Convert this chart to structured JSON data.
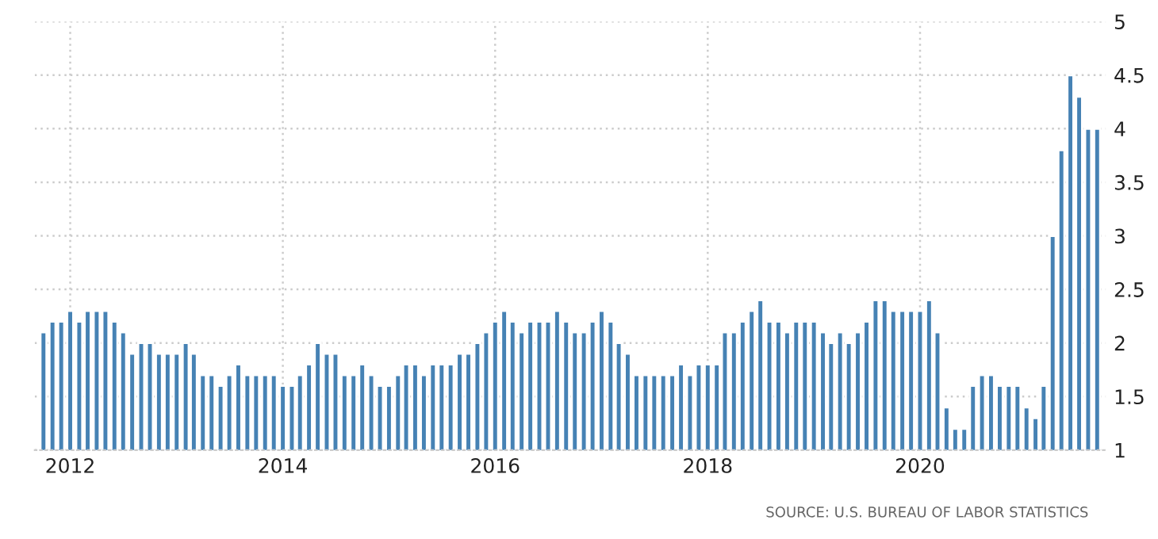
{
  "chart_data": {
    "type": "bar",
    "x": [
      "2011-10",
      "2011-11",
      "2011-12",
      "2012-01",
      "2012-02",
      "2012-03",
      "2012-04",
      "2012-05",
      "2012-06",
      "2012-07",
      "2012-08",
      "2012-09",
      "2012-10",
      "2012-11",
      "2012-12",
      "2013-01",
      "2013-02",
      "2013-03",
      "2013-04",
      "2013-05",
      "2013-06",
      "2013-07",
      "2013-08",
      "2013-09",
      "2013-10",
      "2013-11",
      "2013-12",
      "2014-01",
      "2014-02",
      "2014-03",
      "2014-04",
      "2014-05",
      "2014-06",
      "2014-07",
      "2014-08",
      "2014-09",
      "2014-10",
      "2014-11",
      "2014-12",
      "2015-01",
      "2015-02",
      "2015-03",
      "2015-04",
      "2015-05",
      "2015-06",
      "2015-07",
      "2015-08",
      "2015-09",
      "2015-10",
      "2015-11",
      "2015-12",
      "2016-01",
      "2016-02",
      "2016-03",
      "2016-04",
      "2016-05",
      "2016-06",
      "2016-07",
      "2016-08",
      "2016-09",
      "2016-10",
      "2016-11",
      "2016-12",
      "2017-01",
      "2017-02",
      "2017-03",
      "2017-04",
      "2017-05",
      "2017-06",
      "2017-07",
      "2017-08",
      "2017-09",
      "2017-10",
      "2017-11",
      "2017-12",
      "2018-01",
      "2018-02",
      "2018-03",
      "2018-04",
      "2018-05",
      "2018-06",
      "2018-07",
      "2018-08",
      "2018-09",
      "2018-10",
      "2018-11",
      "2018-12",
      "2019-01",
      "2019-02",
      "2019-03",
      "2019-04",
      "2019-05",
      "2019-06",
      "2019-07",
      "2019-08",
      "2019-09",
      "2019-10",
      "2019-11",
      "2019-12",
      "2020-01",
      "2020-02",
      "2020-03",
      "2020-04",
      "2020-05",
      "2020-06",
      "2020-07",
      "2020-08",
      "2020-09",
      "2020-10",
      "2020-11",
      "2020-12",
      "2021-01",
      "2021-02",
      "2021-03",
      "2021-04",
      "2021-05",
      "2021-06",
      "2021-07",
      "2021-08",
      "2021-09"
    ],
    "values": [
      2.1,
      2.2,
      2.2,
      2.3,
      2.2,
      2.3,
      2.3,
      2.3,
      2.2,
      2.1,
      1.9,
      2.0,
      2.0,
      1.9,
      1.9,
      1.9,
      2.0,
      1.9,
      1.7,
      1.7,
      1.6,
      1.7,
      1.8,
      1.7,
      1.7,
      1.7,
      1.7,
      1.6,
      1.6,
      1.7,
      1.8,
      2.0,
      1.9,
      1.9,
      1.7,
      1.7,
      1.8,
      1.7,
      1.6,
      1.6,
      1.7,
      1.8,
      1.8,
      1.7,
      1.8,
      1.8,
      1.8,
      1.9,
      1.9,
      2.0,
      2.1,
      2.2,
      2.3,
      2.2,
      2.1,
      2.2,
      2.2,
      2.2,
      2.3,
      2.2,
      2.1,
      2.1,
      2.2,
      2.3,
      2.2,
      2.0,
      1.9,
      1.7,
      1.7,
      1.7,
      1.7,
      1.7,
      1.8,
      1.7,
      1.8,
      1.8,
      1.8,
      2.1,
      2.1,
      2.2,
      2.3,
      2.4,
      2.2,
      2.2,
      2.1,
      2.2,
      2.2,
      2.2,
      2.1,
      2.0,
      2.1,
      2.0,
      2.1,
      2.2,
      2.4,
      2.4,
      2.3,
      2.3,
      2.3,
      2.3,
      2.4,
      2.1,
      1.4,
      1.2,
      1.2,
      1.6,
      1.7,
      1.7,
      1.6,
      1.6,
      1.6,
      1.4,
      1.3,
      1.6,
      3.0,
      3.8,
      4.5,
      4.3,
      4.0,
      4.0
    ],
    "color": "#4682b4",
    "xlim": [
      "2011-09",
      "2021-10"
    ],
    "xticks": [
      {
        "value": "2012",
        "label": "2012"
      },
      {
        "value": "2014",
        "label": "2014"
      },
      {
        "value": "2016",
        "label": "2016"
      },
      {
        "value": "2018",
        "label": "2018"
      },
      {
        "value": "2020",
        "label": "2020"
      }
    ],
    "ylim": [
      1,
      5
    ],
    "yticks": [
      1,
      1.5,
      2,
      2.5,
      3,
      3.5,
      4,
      4.5,
      5
    ],
    "grid": true,
    "annotations": [
      "SOURCE: U.S. BUREAU OF LABOR STATISTICS"
    ]
  }
}
